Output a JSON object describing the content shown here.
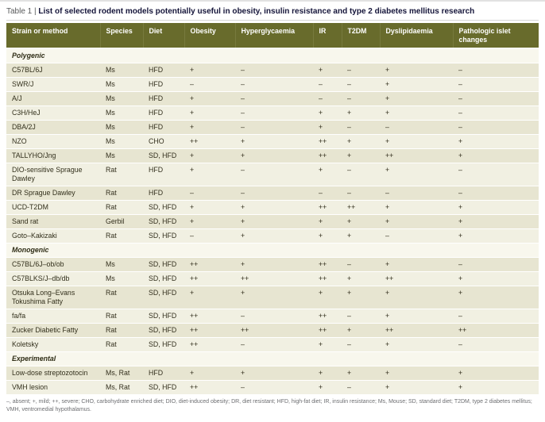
{
  "title": {
    "label": "Table 1 |",
    "text": "List of selected rodent models potentially useful in obesity, insulin resistance and type 2 diabetes mellitus research"
  },
  "table": {
    "columns": [
      "Strain or method",
      "Species",
      "Diet",
      "Obesity",
      "Hyperglycaemia",
      "IR",
      "T2DM",
      "Dyslipidaemia",
      "Pathologic islet changes"
    ],
    "sections": [
      {
        "name": "Polygenic",
        "rows": [
          [
            "C57BL/6J",
            "Ms",
            "HFD",
            "+",
            "–",
            "+",
            "–",
            "+",
            "–"
          ],
          [
            "SWR/J",
            "Ms",
            "HFD",
            "–",
            "–",
            "–",
            "–",
            "+",
            "–"
          ],
          [
            "A/J",
            "Ms",
            "HFD",
            "+",
            "–",
            "–",
            "–",
            "+",
            "–"
          ],
          [
            "C3H/HeJ",
            "Ms",
            "HFD",
            "+",
            "–",
            "+",
            "+",
            "+",
            "–"
          ],
          [
            "DBA/2J",
            "Ms",
            "HFD",
            "+",
            "–",
            "+",
            "–",
            "–",
            "–"
          ],
          [
            "NZO",
            "Ms",
            "CHO",
            "++",
            "+",
            "++",
            "+",
            "+",
            "+"
          ],
          [
            "TALLYHO/Jng",
            "Ms",
            "SD, HFD",
            "+",
            "+",
            "++",
            "+",
            "++",
            "+"
          ],
          [
            "DIO-sensitive Sprague Dawley",
            "Rat",
            "HFD",
            "+",
            "–",
            "+",
            "–",
            "+",
            "–"
          ],
          [
            "DR Sprague Dawley",
            "Rat",
            "HFD",
            "–",
            "–",
            "–",
            "–",
            "–",
            "–"
          ],
          [
            "UCD-T2DM",
            "Rat",
            "SD, HFD",
            "+",
            "+",
            "++",
            "++",
            "+",
            "+"
          ],
          [
            "Sand rat",
            "Gerbil",
            "SD, HFD",
            "+",
            "+",
            "+",
            "+",
            "+",
            "+"
          ],
          [
            "Goto–Kakizaki",
            "Rat",
            "SD, HFD",
            "–",
            "+",
            "+",
            "+",
            "–",
            "+"
          ]
        ]
      },
      {
        "name": "Monogenic",
        "rows": [
          [
            "C57BL/6J–ob/ob",
            "Ms",
            "SD, HFD",
            "++",
            "+",
            "++",
            "–",
            "+",
            "–"
          ],
          [
            "C57BLKS/J–db/db",
            "Ms",
            "SD, HFD",
            "++",
            "++",
            "++",
            "+",
            "++",
            "+"
          ],
          [
            "Otsuka Long–Evans Tokushima Fatty",
            "Rat",
            "SD, HFD",
            "+",
            "+",
            "+",
            "+",
            "+",
            "+"
          ],
          [
            "fa/fa",
            "Rat",
            "SD, HFD",
            "++",
            "–",
            "++",
            "–",
            "+",
            "–"
          ],
          [
            "Zucker Diabetic Fatty",
            "Rat",
            "SD, HFD",
            "++",
            "++",
            "++",
            "+",
            "++",
            "++"
          ],
          [
            "Koletsky",
            "Rat",
            "SD, HFD",
            "++",
            "–",
            "+",
            "–",
            "+",
            "–"
          ]
        ]
      },
      {
        "name": "Experimental",
        "rows": [
          [
            "Low-dose streptozotocin",
            "Ms, Rat",
            "HFD",
            "+",
            "+",
            "+",
            "+",
            "+",
            "+"
          ],
          [
            "VMH lesion",
            "Ms, Rat",
            "SD, HFD",
            "++",
            "–",
            "+",
            "–",
            "+",
            "+"
          ]
        ]
      }
    ]
  },
  "footnote": "–, absent; +, mild; ++, severe; CHO, carbohydrate enriched diet; DIO, diet-induced obesity; DR, diet resistant; HFD, high-fat diet; IR, insulin resistance; Ms, Mouse; SD, standard diet; T2DM, type 2 diabetes mellitus; VMH, ventromedial hypothalamus."
}
